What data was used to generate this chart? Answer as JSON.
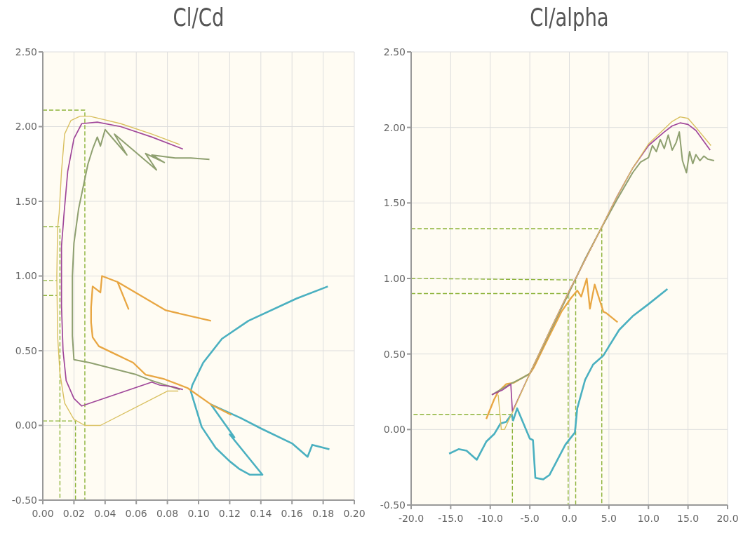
{
  "chart_data": [
    {
      "type": "line",
      "title": "Cl/Cd",
      "xlim": [
        0,
        0.2
      ],
      "ylim": [
        -0.5,
        2.5
      ],
      "xticks": [
        {
          "value": 0,
          "label": "0.00"
        },
        {
          "value": 0.02,
          "label": "0.02"
        },
        {
          "value": 0.04,
          "label": "0.04"
        },
        {
          "value": 0.06,
          "label": "0.06"
        },
        {
          "value": 0.08,
          "label": "0.08"
        },
        {
          "value": 0.1,
          "label": "0.10"
        },
        {
          "value": 0.12,
          "label": "0.12"
        },
        {
          "value": 0.14,
          "label": "0.14"
        },
        {
          "value": 0.16,
          "label": "0.16"
        },
        {
          "value": 0.18,
          "label": "0.18"
        },
        {
          "value": 0.2,
          "label": "0.20"
        }
      ],
      "yticks": [
        {
          "value": -0.5,
          "label": "-0.50"
        },
        {
          "value": 0,
          "label": "0.00"
        },
        {
          "value": 0.5,
          "label": "0.50"
        },
        {
          "value": 1,
          "label": "1.00"
        },
        {
          "value": 1.5,
          "label": "1.50"
        },
        {
          "value": 2,
          "label": "2.00"
        },
        {
          "value": 2.5,
          "label": "2.50"
        }
      ],
      "grid": true,
      "marker": "none",
      "series": [
        {
          "color": "#4ab0c0",
          "x": [
            0.184,
            0.173,
            0.17,
            0.16,
            0.14,
            0.127,
            0.108,
            0.123,
            0.12,
            0.141,
            0.133,
            0.126,
            0.12,
            0.111,
            0.102,
            0.097,
            0.095,
            0.096,
            0.103,
            0.115,
            0.132,
            0.163,
            0.183
          ],
          "values": [
            -0.16,
            -0.13,
            -0.21,
            -0.12,
            -0.02,
            0.05,
            0.14,
            -0.08,
            -0.06,
            -0.33,
            -0.33,
            -0.29,
            -0.24,
            -0.15,
            -0.01,
            0.16,
            0.23,
            0.27,
            0.42,
            0.58,
            0.7,
            0.85,
            0.93
          ]
        },
        {
          "color": "#e8a642",
          "x": [
            0.121,
            0.108,
            0.093,
            0.078,
            0.066,
            0.058,
            0.048,
            0.036,
            0.032,
            0.031,
            0.031,
            0.032,
            0.037,
            0.038,
            0.048,
            0.055,
            0.048,
            0.079,
            0.108
          ],
          "values": [
            0.07,
            0.14,
            0.25,
            0.31,
            0.34,
            0.42,
            0.47,
            0.53,
            0.59,
            0.69,
            0.79,
            0.93,
            0.89,
            1.0,
            0.96,
            0.78,
            0.96,
            0.77,
            0.7
          ]
        },
        {
          "color": "#8fa070",
          "x": [
            0.088,
            0.07,
            0.06,
            0.045,
            0.03,
            0.02,
            0.019,
            0.019,
            0.02,
            0.023,
            0.026,
            0.029,
            0.032,
            0.035,
            0.037,
            0.04,
            0.054,
            0.046,
            0.073,
            0.066,
            0.078,
            0.07,
            0.085,
            0.095,
            0.107
          ],
          "values": [
            0.24,
            0.3,
            0.34,
            0.38,
            0.42,
            0.44,
            0.6,
            1.0,
            1.22,
            1.45,
            1.6,
            1.75,
            1.85,
            1.93,
            1.87,
            1.98,
            1.81,
            1.95,
            1.71,
            1.82,
            1.76,
            1.81,
            1.79,
            1.79,
            1.78
          ]
        },
        {
          "color": "#a0479a",
          "x": [
            0.09,
            0.083,
            0.075,
            0.07,
            0.025,
            0.02,
            0.015,
            0.013,
            0.012,
            0.012,
            0.013,
            0.0135,
            0.016,
            0.02,
            0.025,
            0.035,
            0.05,
            0.07,
            0.09
          ],
          "values": [
            0.24,
            0.26,
            0.27,
            0.29,
            0.13,
            0.18,
            0.3,
            0.5,
            0.8,
            1.2,
            1.33,
            1.4,
            1.7,
            1.92,
            2.02,
            2.03,
            2.0,
            1.93,
            1.85
          ]
        },
        {
          "color": "#d9c060",
          "x": [
            0.087,
            0.08,
            0.037,
            0.027,
            0.02,
            0.014,
            0.011,
            0.0095,
            0.009,
            0.0095,
            0.0105,
            0.012,
            0.014,
            0.018,
            0.024,
            0.03,
            0.05,
            0.07,
            0.088
          ],
          "values": [
            0.23,
            0.23,
            0.0,
            0.0,
            0.04,
            0.15,
            0.35,
            0.6,
            1.0,
            1.32,
            1.42,
            1.7,
            1.95,
            2.04,
            2.07,
            2.07,
            2.02,
            1.95,
            1.88
          ]
        },
        {
          "color": "#8db33a",
          "line_style": "dashed",
          "x": [
            0,
            0.027,
            0.027
          ],
          "values": [
            2.11,
            2.11,
            -0.5
          ]
        },
        {
          "color": "#8db33a",
          "line_style": "dashed",
          "x": [
            0,
            0.011,
            0.011
          ],
          "values": [
            1.33,
            1.33,
            -0.5
          ]
        },
        {
          "color": "#8db33a",
          "line_style": "dashed",
          "x": [
            0,
            0.009
          ],
          "values": [
            0.97,
            0.97
          ]
        },
        {
          "color": "#8db33a",
          "line_style": "dashed",
          "x": [
            0,
            0.009
          ],
          "values": [
            0.87,
            0.87
          ]
        },
        {
          "color": "#8db33a",
          "line_style": "dashed",
          "x": [
            0,
            0.021,
            0.021
          ],
          "values": [
            0.03,
            0.03,
            -0.5
          ]
        }
      ]
    },
    {
      "type": "line",
      "title": "Cl/alpha",
      "xlim": [
        -20,
        20
      ],
      "ylim": [
        -0.5,
        2.5
      ],
      "xticks": [
        {
          "value": -20,
          "label": "-20.0"
        },
        {
          "value": -15,
          "label": "-15.0"
        },
        {
          "value": -10,
          "label": "-10.0"
        },
        {
          "value": -5,
          "label": "-5.0"
        },
        {
          "value": 0,
          "label": "0.0"
        },
        {
          "value": 5,
          "label": "5.0"
        },
        {
          "value": 10,
          "label": "10.0"
        },
        {
          "value": 15,
          "label": "15.0"
        },
        {
          "value": 20,
          "label": "20.0"
        }
      ],
      "yticks": [
        {
          "value": -0.5,
          "label": "-0.50"
        },
        {
          "value": 0,
          "label": "0.00"
        },
        {
          "value": 0.5,
          "label": "0.50"
        },
        {
          "value": 1,
          "label": "1.00"
        },
        {
          "value": 1.5,
          "label": "1.50"
        },
        {
          "value": 2,
          "label": "2.00"
        },
        {
          "value": 2.5,
          "label": "2.50"
        }
      ],
      "grid": true,
      "marker": "none",
      "series": [
        {
          "color": "#4ab0c0",
          "x": [
            -15.2,
            -14,
            -13,
            -11.7,
            -10.5,
            -9.5,
            -8.7,
            -8,
            -7.3,
            -7.1,
            -6.6,
            -5,
            -4.6,
            -4.3,
            -3.3,
            -2.5,
            -1.5,
            -0.5,
            0.7,
            1,
            2,
            3,
            4.3,
            5,
            6.3,
            8,
            10,
            12.4
          ],
          "values": [
            -0.16,
            -0.13,
            -0.14,
            -0.2,
            -0.08,
            -0.03,
            0.04,
            0.05,
            0.1,
            0.06,
            0.14,
            -0.06,
            -0.07,
            -0.32,
            -0.33,
            -0.3,
            -0.2,
            -0.1,
            -0.02,
            0.14,
            0.33,
            0.43,
            0.49,
            0.55,
            0.66,
            0.75,
            0.83,
            0.93
          ]
        },
        {
          "color": "#e8a642",
          "x": [
            -10.5,
            -9.5,
            -9,
            -8,
            -7,
            -6,
            -5,
            -4.5,
            -3,
            -1,
            0.2,
            1,
            1.5,
            2.2,
            2.6,
            3.2,
            4.3,
            4.7,
            6.1
          ],
          "values": [
            0.07,
            0.2,
            0.25,
            0.3,
            0.31,
            0.34,
            0.37,
            0.41,
            0.57,
            0.78,
            0.87,
            0.92,
            0.88,
            1.0,
            0.8,
            0.96,
            0.78,
            0.77,
            0.71
          ]
        },
        {
          "color": "#8fa070",
          "x": [
            -9.8,
            -8.5,
            -7.5,
            -6,
            -5,
            -2.5,
            0,
            2,
            4,
            6,
            8,
            9,
            10,
            10.5,
            11,
            11.5,
            12,
            12.5,
            13,
            13.5,
            13.9,
            14.3,
            14.8,
            15.2,
            15.6,
            16,
            16.5,
            17,
            17.5,
            18.3
          ],
          "values": [
            0.23,
            0.27,
            0.3,
            0.34,
            0.37,
            0.64,
            0.91,
            1.13,
            1.33,
            1.52,
            1.7,
            1.77,
            1.8,
            1.88,
            1.84,
            1.92,
            1.86,
            1.95,
            1.85,
            1.9,
            1.97,
            1.78,
            1.7,
            1.84,
            1.76,
            1.82,
            1.78,
            1.81,
            1.79,
            1.78
          ]
        },
        {
          "color": "#a0479a",
          "x": [
            -9.8,
            -8.5,
            -7.4,
            -7.2,
            -5,
            -2.5,
            0,
            0.8,
            4,
            6,
            8,
            10,
            12,
            13,
            14,
            15,
            16,
            17.8
          ],
          "values": [
            0.23,
            0.26,
            0.3,
            0.12,
            0.37,
            0.65,
            0.92,
            1.0,
            1.33,
            1.54,
            1.73,
            1.88,
            1.97,
            2.01,
            2.03,
            2.02,
            1.98,
            1.85
          ]
        },
        {
          "color": "#d9c060",
          "x": [
            -9,
            -8.6,
            -8.2,
            -7.5,
            -7.3,
            -5,
            -2.5,
            0,
            0.8,
            4,
            6,
            8,
            10,
            12,
            13,
            14,
            15,
            16,
            17.9
          ],
          "values": [
            0.23,
            0.0,
            0.0,
            0.08,
            0.1,
            0.37,
            0.65,
            0.92,
            1.0,
            1.33,
            1.54,
            1.73,
            1.89,
            1.99,
            2.04,
            2.07,
            2.06,
            2.0,
            1.88
          ]
        },
        {
          "color": "#8db33a",
          "line_style": "dashed",
          "x": [
            -20,
            4.1,
            4.1
          ],
          "values": [
            1.33,
            1.33,
            -0.5
          ]
        },
        {
          "color": "#8db33a",
          "line_style": "dashed",
          "x": [
            -20,
            0.8,
            0.8
          ],
          "values": [
            1.0,
            0.99,
            -0.5
          ]
        },
        {
          "color": "#8db33a",
          "line_style": "dashed",
          "x": [
            -20,
            -0.15,
            -0.15
          ],
          "values": [
            0.9,
            0.9,
            -0.5
          ]
        },
        {
          "color": "#8db33a",
          "line_style": "dashed",
          "x": [
            -19.7,
            -7.2,
            -7.2
          ],
          "values": [
            0.1,
            0.1,
            -0.5
          ]
        }
      ]
    }
  ]
}
